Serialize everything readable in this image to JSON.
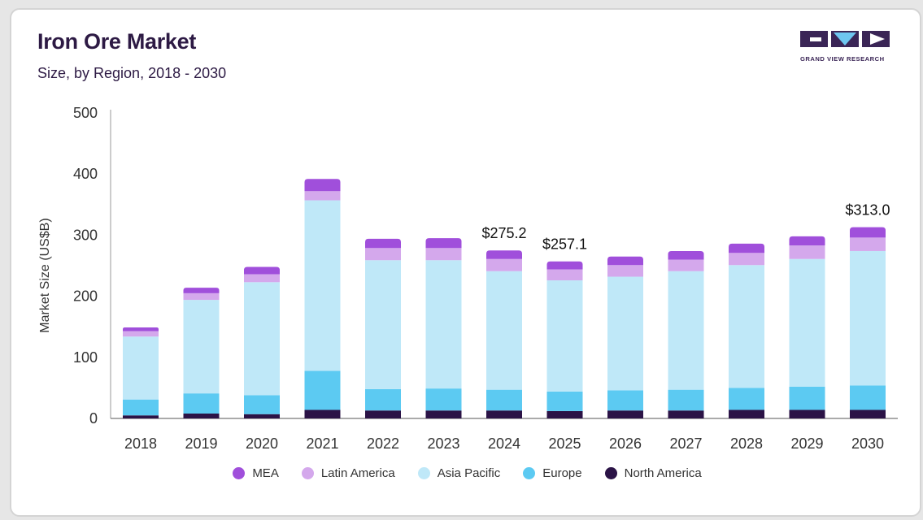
{
  "header": {
    "title": "Iron Ore Market",
    "subtitle": "Size, by Region, 2018 - 2030"
  },
  "logo": {
    "text": "GRAND VIEW RESEARCH",
    "colors": [
      "#3a2556",
      "#6ec6ef"
    ]
  },
  "chart_data": {
    "type": "bar",
    "stacked": true,
    "categories": [
      "2018",
      "2019",
      "2020",
      "2021",
      "2022",
      "2023",
      "2024",
      "2025",
      "2026",
      "2027",
      "2028",
      "2029",
      "2030"
    ],
    "series": [
      {
        "name": "North America",
        "color": "#2b1346",
        "values": [
          5,
          8,
          7,
          14,
          13,
          13,
          13,
          12,
          13,
          13,
          14,
          14,
          14
        ]
      },
      {
        "name": "Europe",
        "color": "#5ccaf2",
        "values": [
          26,
          33,
          31,
          64,
          35,
          36,
          34,
          32,
          33,
          34,
          36,
          38,
          40
        ]
      },
      {
        "name": "Asia Pacific",
        "color": "#bfe8f8",
        "values": [
          103,
          153,
          185,
          279,
          211,
          210,
          194,
          182,
          186,
          194,
          201,
          209,
          220
        ]
      },
      {
        "name": "Latin America",
        "color": "#d4a8ec",
        "values": [
          9,
          11,
          13,
          15,
          20,
          20,
          20,
          18,
          19,
          19,
          20,
          22,
          22
        ]
      },
      {
        "name": "MEA",
        "color": "#a04fdb",
        "values": [
          6,
          9,
          12,
          20,
          15,
          16,
          14,
          13,
          14,
          14,
          15,
          15,
          17
        ]
      }
    ],
    "total_labels": {
      "2024": "$275.2",
      "2025": "$257.1",
      "2030": "$313.0"
    },
    "y_ticks": [
      "0",
      "100",
      "200",
      "300",
      "400",
      "500"
    ],
    "ylabel": "Market Size (US$B)",
    "xlabel": "",
    "ylim": [
      0,
      500
    ],
    "grid": false,
    "legend_position": "bottom"
  }
}
